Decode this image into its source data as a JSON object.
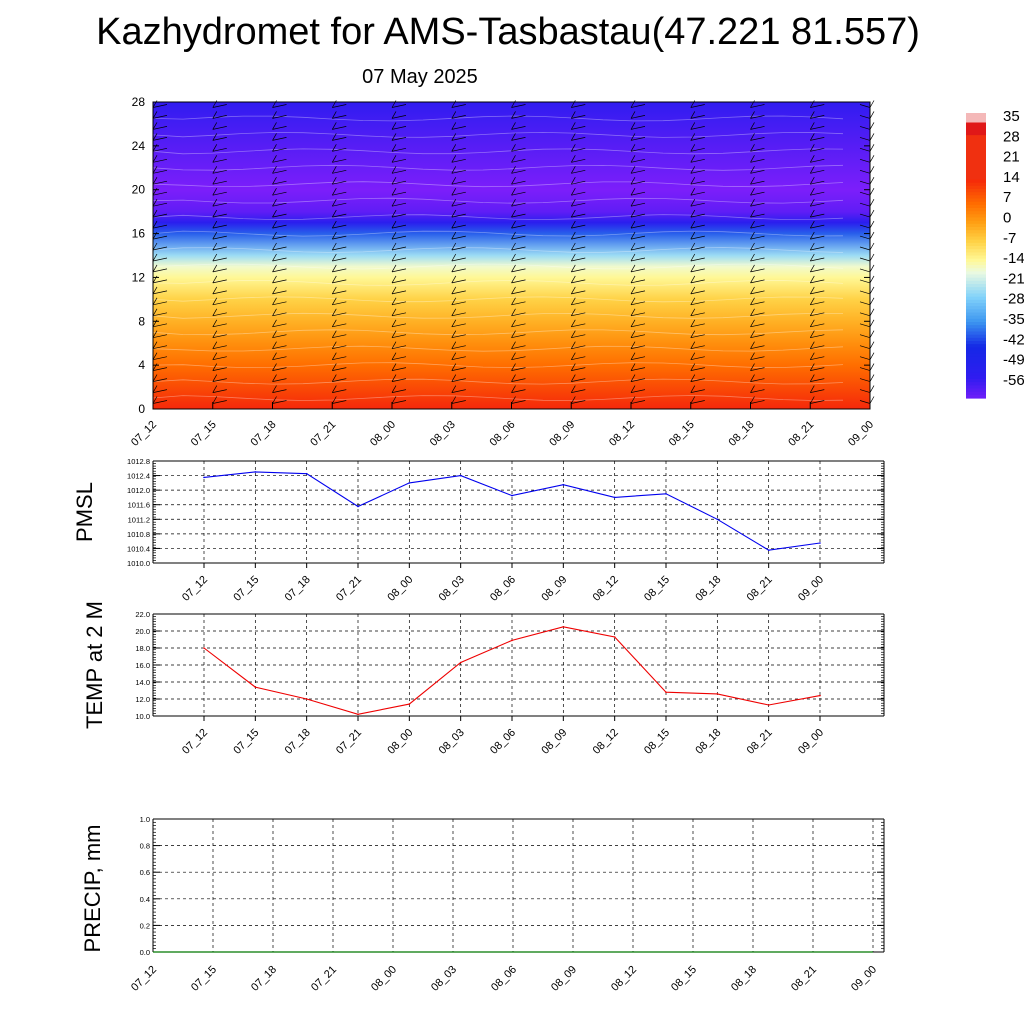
{
  "header": {
    "title": "Kazhydromet for AMS-Tasbastau(47.221 81.557)",
    "date": "07 May 2025"
  },
  "colorbar": {
    "labels": [
      "35",
      "28",
      "21",
      "14",
      "7",
      "0",
      "-7",
      "-14",
      "-21",
      "-28",
      "-35",
      "-42",
      "-49",
      "-56"
    ],
    "colors": [
      "#f4b8b8",
      "#e01818",
      "#f02a0a",
      "#ff5a00",
      "#ff8000",
      "#ffa600",
      "#ffd040",
      "#fff8a0",
      "#c6ecf4",
      "#40c0f0",
      "#2a8cee",
      "#5a6ce8",
      "#2820f0",
      "#9c3cf0"
    ]
  },
  "chart_data": [
    {
      "type": "heatmap",
      "name": "upper-air cross-section",
      "y_ticks": [
        0,
        4,
        8,
        12,
        16,
        20,
        24,
        28
      ],
      "ylim": [
        0,
        28
      ],
      "x_ticks": [
        "07_12",
        "07_15",
        "07_18",
        "07_21",
        "08_00",
        "08_03",
        "08_06",
        "08_09",
        "08_12",
        "08_15",
        "08_18",
        "08_21",
        "09_00"
      ],
      "color_scale": {
        "min": -56,
        "max": 35,
        "labels": [
          35,
          28,
          21,
          14,
          7,
          0,
          -7,
          -14,
          -21,
          -28,
          -35,
          -42,
          -49,
          -56
        ]
      },
      "levels": [
        0,
        2,
        4,
        6,
        8,
        10,
        12,
        13,
        14,
        16,
        17,
        18,
        20,
        22,
        24,
        26,
        28
      ],
      "temperature_by_level": [
        14,
        10,
        6,
        2,
        -2,
        -6,
        -12,
        -15,
        -22,
        -36,
        -48,
        -55,
        -58,
        -56,
        -54,
        -52,
        -50
      ],
      "wind_barbs": true
    },
    {
      "type": "line",
      "ylabel": "PMSL",
      "x": [
        "07_12",
        "07_15",
        "07_18",
        "07_21",
        "08_00",
        "08_03",
        "08_06",
        "08_09",
        "08_12",
        "08_15",
        "08_18",
        "08_21",
        "09_00"
      ],
      "series": [
        {
          "color": "#0000ee",
          "values": [
            1012.35,
            1012.5,
            1012.45,
            1011.55,
            1012.2,
            1012.4,
            1011.85,
            1012.15,
            1011.8,
            1011.9,
            1011.2,
            1010.35,
            1010.55
          ]
        }
      ],
      "ylim": [
        1010.0,
        1012.8
      ],
      "y_ticks": [
        "1010.0",
        "1010.4",
        "1010.8",
        "1011.2",
        "1011.6",
        "1012.0",
        "1012.4",
        "1012.8"
      ],
      "grid": true
    },
    {
      "type": "line",
      "ylabel": "TEMP at 2 M",
      "x": [
        "07_12",
        "07_15",
        "07_18",
        "07_21",
        "08_00",
        "08_03",
        "08_06",
        "08_09",
        "08_12",
        "08_15",
        "08_18",
        "08_21",
        "09_00"
      ],
      "series": [
        {
          "color": "#ee0000",
          "values": [
            18.0,
            13.4,
            12.0,
            10.2,
            11.4,
            16.3,
            18.9,
            20.5,
            19.3,
            12.8,
            12.6,
            11.3,
            12.4
          ]
        }
      ],
      "ylim": [
        10.0,
        22.0
      ],
      "y_ticks": [
        "10.0",
        "12.0",
        "14.0",
        "16.0",
        "18.0",
        "20.0",
        "22.0"
      ],
      "grid": true
    },
    {
      "type": "line",
      "ylabel": "PRECIP, mm",
      "x": [
        "07_12",
        "07_15",
        "07_18",
        "07_21",
        "08_00",
        "08_03",
        "08_06",
        "08_09",
        "08_12",
        "08_15",
        "08_18",
        "08_21",
        "09_00"
      ],
      "series": [
        {
          "color": "#007700",
          "values": [
            0,
            0,
            0,
            0,
            0,
            0,
            0,
            0,
            0,
            0,
            0,
            0,
            0
          ]
        }
      ],
      "ylim": [
        0.0,
        1.0
      ],
      "y_ticks": [
        "0.0",
        "0.2",
        "0.4",
        "0.6",
        "0.8",
        "1.0"
      ],
      "grid": true
    }
  ]
}
